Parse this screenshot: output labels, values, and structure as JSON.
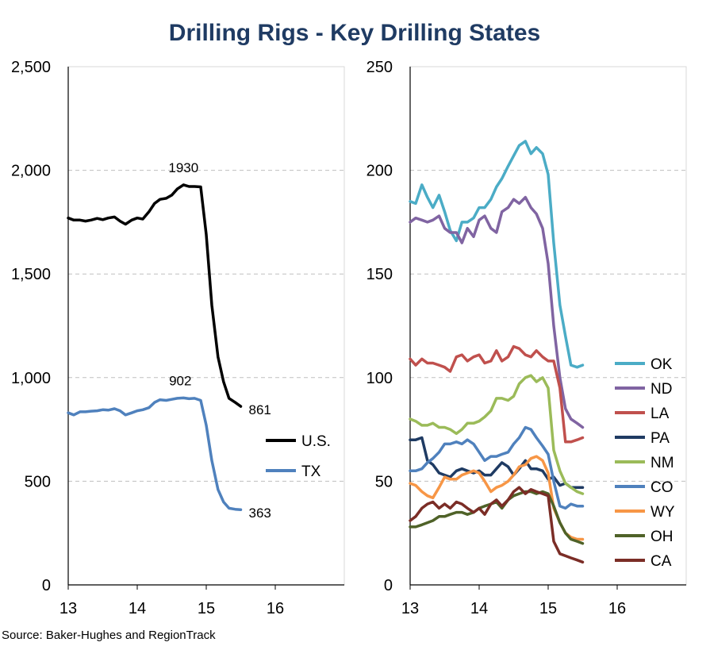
{
  "title": "Drilling Rigs - Key Drilling States",
  "source": "Source: Baker-Hughes and RegionTrack",
  "chart_data": [
    {
      "type": "line",
      "xlim": [
        13,
        17
      ],
      "ylim": [
        0,
        2500
      ],
      "x_ticks": [
        13,
        14,
        15,
        16
      ],
      "y_ticks": [
        0,
        500,
        1000,
        1500,
        2000,
        2500
      ],
      "y_tick_labels": [
        "0",
        "500",
        "1,000",
        "1,500",
        "2,000",
        "2,500"
      ],
      "grid": "horizontal dashed",
      "legend_position": "right",
      "series": [
        {
          "name": "U.S.",
          "color": "#000000",
          "x": [
            13.0,
            13.08,
            13.17,
            13.25,
            13.33,
            13.42,
            13.5,
            13.58,
            13.67,
            13.75,
            13.83,
            13.92,
            14.0,
            14.08,
            14.17,
            14.25,
            14.33,
            14.42,
            14.5,
            14.58,
            14.67,
            14.75,
            14.83,
            14.92,
            15.0,
            15.08,
            15.17,
            15.25,
            15.33,
            15.42,
            15.5
          ],
          "y": [
            1770,
            1760,
            1760,
            1755,
            1760,
            1768,
            1762,
            1770,
            1775,
            1755,
            1740,
            1760,
            1770,
            1765,
            1800,
            1840,
            1860,
            1865,
            1880,
            1910,
            1930,
            1922,
            1922,
            1920,
            1690,
            1350,
            1100,
            980,
            900,
            880,
            861
          ]
        },
        {
          "name": "TX",
          "color": "#4f81bd",
          "x": [
            13.0,
            13.08,
            13.17,
            13.25,
            13.33,
            13.42,
            13.5,
            13.58,
            13.67,
            13.75,
            13.83,
            13.92,
            14.0,
            14.08,
            14.17,
            14.25,
            14.33,
            14.42,
            14.5,
            14.58,
            14.67,
            14.75,
            14.83,
            14.92,
            15.0,
            15.08,
            15.17,
            15.25,
            15.33,
            15.42,
            15.5
          ],
          "y": [
            830,
            820,
            835,
            835,
            838,
            840,
            845,
            843,
            850,
            840,
            820,
            830,
            840,
            845,
            855,
            880,
            893,
            890,
            895,
            900,
            902,
            898,
            900,
            890,
            770,
            600,
            460,
            400,
            370,
            365,
            363
          ]
        }
      ],
      "annotations": [
        {
          "text": "1930",
          "x": 14.67,
          "y": 1930
        },
        {
          "text": "861",
          "x": 15.5,
          "y": 861
        },
        {
          "text": "902",
          "x": 14.67,
          "y": 902
        },
        {
          "text": "363",
          "x": 15.5,
          "y": 363
        }
      ]
    },
    {
      "type": "line",
      "xlim": [
        13,
        17
      ],
      "ylim": [
        0,
        250
      ],
      "x_ticks": [
        13,
        14,
        15,
        16
      ],
      "y_ticks": [
        0,
        50,
        100,
        150,
        200,
        250
      ],
      "y_tick_labels": [
        "0",
        "50",
        "100",
        "150",
        "200",
        "250"
      ],
      "grid": "horizontal dashed",
      "legend_position": "right",
      "series": [
        {
          "name": "OK",
          "color": "#4bacc6",
          "x": [
            13.0,
            13.08,
            13.17,
            13.25,
            13.33,
            13.42,
            13.5,
            13.58,
            13.67,
            13.75,
            13.83,
            13.92,
            14.0,
            14.08,
            14.17,
            14.25,
            14.33,
            14.42,
            14.5,
            14.58,
            14.67,
            14.75,
            14.83,
            14.92,
            15.0,
            15.08,
            15.17,
            15.25,
            15.33,
            15.42,
            15.5
          ],
          "y": [
            185,
            184,
            193,
            187,
            182,
            188,
            180,
            171,
            166,
            175,
            175,
            177,
            182,
            182,
            186,
            192,
            196,
            202,
            207,
            212,
            214,
            208,
            211,
            208,
            198,
            165,
            135,
            120,
            106,
            105,
            106
          ]
        },
        {
          "name": "ND",
          "color": "#8064a2",
          "x": [
            13.0,
            13.08,
            13.17,
            13.25,
            13.33,
            13.42,
            13.5,
            13.58,
            13.67,
            13.75,
            13.83,
            13.92,
            14.0,
            14.08,
            14.17,
            14.25,
            14.33,
            14.42,
            14.5,
            14.58,
            14.67,
            14.75,
            14.83,
            14.92,
            15.0,
            15.08,
            15.17,
            15.25,
            15.33,
            15.42,
            15.5
          ],
          "y": [
            175,
            177,
            176,
            175,
            176,
            178,
            172,
            170,
            170,
            165,
            172,
            168,
            176,
            178,
            172,
            170,
            180,
            182,
            186,
            184,
            187,
            182,
            179,
            172,
            155,
            125,
            100,
            85,
            80,
            78,
            76
          ]
        },
        {
          "name": "LA",
          "color": "#c0504d",
          "x": [
            13.0,
            13.08,
            13.17,
            13.25,
            13.33,
            13.42,
            13.5,
            13.58,
            13.67,
            13.75,
            13.83,
            13.92,
            14.0,
            14.08,
            14.17,
            14.25,
            14.33,
            14.42,
            14.5,
            14.58,
            14.67,
            14.75,
            14.83,
            14.92,
            15.0,
            15.08,
            15.17,
            15.25,
            15.33,
            15.42,
            15.5
          ],
          "y": [
            109,
            106,
            109,
            107,
            107,
            106,
            105,
            103,
            110,
            111,
            108,
            110,
            111,
            107,
            108,
            113,
            108,
            110,
            115,
            114,
            111,
            110,
            113,
            110,
            108,
            108,
            95,
            69,
            69,
            70,
            71
          ]
        },
        {
          "name": "PA",
          "color": "#1f3b63",
          "x": [
            13.0,
            13.08,
            13.17,
            13.25,
            13.33,
            13.42,
            13.5,
            13.58,
            13.67,
            13.75,
            13.83,
            13.92,
            14.0,
            14.08,
            14.17,
            14.25,
            14.33,
            14.42,
            14.5,
            14.58,
            14.67,
            14.75,
            14.83,
            14.92,
            15.0,
            15.08,
            15.17,
            15.25,
            15.33,
            15.42,
            15.5
          ],
          "y": [
            70,
            70,
            71,
            60,
            58,
            54,
            53,
            52,
            55,
            56,
            55,
            54,
            55,
            53,
            53,
            56,
            59,
            57,
            53,
            56,
            60,
            56,
            56,
            55,
            51,
            52,
            48,
            49,
            47,
            47,
            47
          ]
        },
        {
          "name": "NM",
          "color": "#9bbb59",
          "x": [
            13.0,
            13.08,
            13.17,
            13.25,
            13.33,
            13.42,
            13.5,
            13.58,
            13.67,
            13.75,
            13.83,
            13.92,
            14.0,
            14.08,
            14.17,
            14.25,
            14.33,
            14.42,
            14.5,
            14.58,
            14.67,
            14.75,
            14.83,
            14.92,
            15.0,
            15.08,
            15.17,
            15.25,
            15.33,
            15.42,
            15.5
          ],
          "y": [
            80,
            79,
            77,
            77,
            78,
            76,
            76,
            75,
            73,
            75,
            78,
            78,
            79,
            81,
            84,
            90,
            90,
            89,
            91,
            97,
            100,
            101,
            98,
            100,
            95,
            65,
            55,
            49,
            47,
            45,
            44
          ]
        },
        {
          "name": "CO",
          "color": "#4f81bd",
          "x": [
            13.0,
            13.08,
            13.17,
            13.25,
            13.33,
            13.42,
            13.5,
            13.58,
            13.67,
            13.75,
            13.83,
            13.92,
            14.0,
            14.08,
            14.17,
            14.25,
            14.33,
            14.42,
            14.5,
            14.58,
            14.67,
            14.75,
            14.83,
            14.92,
            15.0,
            15.08,
            15.17,
            15.25,
            15.33,
            15.42,
            15.5
          ],
          "y": [
            55,
            55,
            56,
            59,
            61,
            64,
            68,
            68,
            69,
            68,
            70,
            68,
            64,
            60,
            62,
            62,
            63,
            64,
            68,
            71,
            76,
            75,
            71,
            67,
            63,
            50,
            38,
            37,
            39,
            38,
            38
          ]
        },
        {
          "name": "WY",
          "color": "#f79646",
          "x": [
            13.0,
            13.08,
            13.17,
            13.25,
            13.33,
            13.42,
            13.5,
            13.58,
            13.67,
            13.75,
            13.83,
            13.92,
            14.0,
            14.08,
            14.17,
            14.25,
            14.33,
            14.42,
            14.5,
            14.58,
            14.67,
            14.75,
            14.83,
            14.92,
            15.0,
            15.08,
            15.17,
            15.25,
            15.33,
            15.42,
            15.5
          ],
          "y": [
            49,
            48,
            45,
            43,
            42,
            47,
            52,
            51,
            51,
            53,
            54,
            55,
            54,
            50,
            45,
            47,
            48,
            50,
            53,
            57,
            58,
            61,
            62,
            60,
            54,
            37,
            30,
            25,
            23,
            22,
            22
          ]
        },
        {
          "name": "OH",
          "color": "#4f6228",
          "x": [
            13.0,
            13.08,
            13.17,
            13.25,
            13.33,
            13.42,
            13.5,
            13.58,
            13.67,
            13.75,
            13.83,
            13.92,
            14.0,
            14.08,
            14.17,
            14.25,
            14.33,
            14.42,
            14.5,
            14.58,
            14.67,
            14.75,
            14.83,
            14.92,
            15.0,
            15.08,
            15.17,
            15.25,
            15.33,
            15.42,
            15.5
          ],
          "y": [
            28,
            28,
            29,
            30,
            31,
            33,
            33,
            34,
            35,
            35,
            34,
            35,
            37,
            38,
            39,
            40,
            37,
            41,
            43,
            44,
            45,
            45,
            44,
            45,
            44,
            38,
            30,
            25,
            22,
            21,
            20
          ]
        },
        {
          "name": "CA",
          "color": "#7b2d26",
          "x": [
            13.0,
            13.08,
            13.17,
            13.25,
            13.33,
            13.42,
            13.5,
            13.58,
            13.67,
            13.75,
            13.83,
            13.92,
            14.0,
            14.08,
            14.17,
            14.25,
            14.33,
            14.42,
            14.5,
            14.58,
            14.67,
            14.75,
            14.83,
            14.92,
            15.0,
            15.08,
            15.17,
            15.25,
            15.33,
            15.42,
            15.5
          ],
          "y": [
            31,
            33,
            37,
            39,
            40,
            37,
            39,
            37,
            40,
            39,
            37,
            35,
            37,
            34,
            39,
            41,
            38,
            41,
            45,
            47,
            44,
            46,
            45,
            44,
            43,
            21,
            15,
            14,
            13,
            12,
            11
          ]
        }
      ]
    }
  ]
}
